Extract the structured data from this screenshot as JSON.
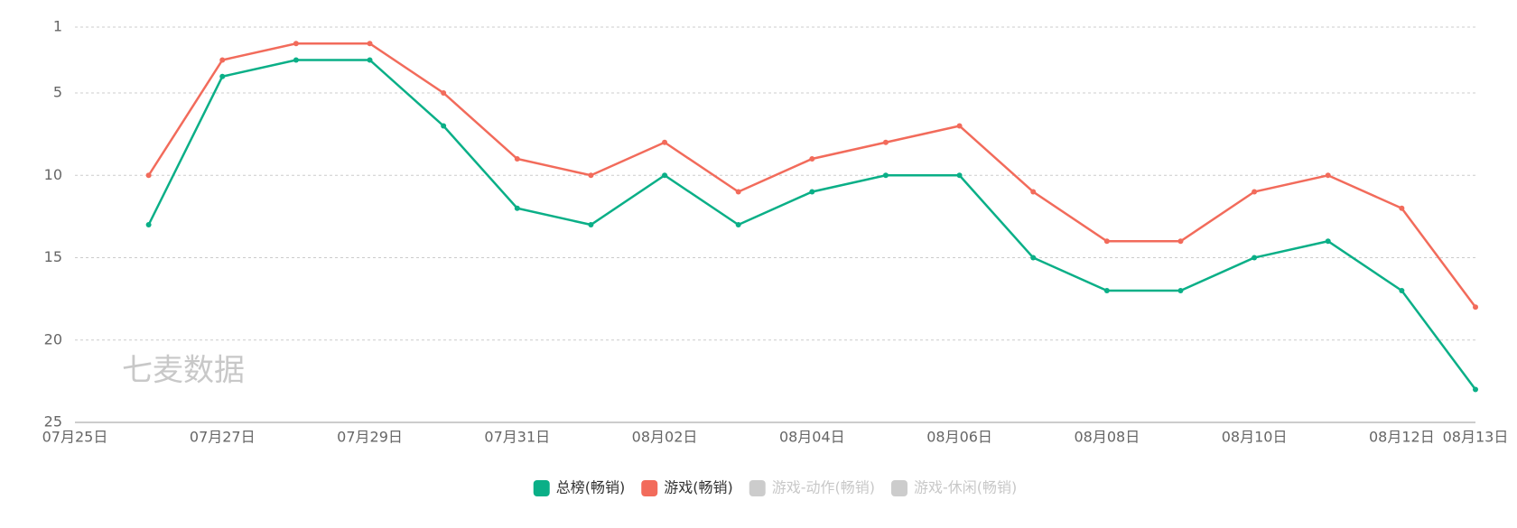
{
  "chart_data": {
    "type": "line",
    "watermark": "七麦数据",
    "categories": [
      "07月25日",
      null,
      "07月27日",
      null,
      "07月29日",
      null,
      "07月31日",
      null,
      "08月02日",
      null,
      "08月04日",
      null,
      "08月06日",
      null,
      "08月08日",
      null,
      "08月10日",
      null,
      "08月12日",
      "08月13日"
    ],
    "series": [
      {
        "name": "总榜(畅销)",
        "color": "#0aaf87",
        "values": [
          null,
          13,
          4,
          3,
          3,
          7,
          12,
          13,
          10,
          13,
          11,
          10,
          10,
          15,
          17,
          17,
          15,
          14,
          17,
          23
        ]
      },
      {
        "name": "游戏(畅销)",
        "color": "#f26b5b",
        "values": [
          null,
          10,
          3,
          2,
          2,
          5,
          9,
          10,
          8,
          11,
          9,
          8,
          7,
          11,
          14,
          14,
          11,
          10,
          12,
          18
        ]
      }
    ],
    "hidden_series": [
      {
        "name": "游戏-动作(畅销)",
        "color": "#cccccc"
      },
      {
        "name": "游戏-休闲(畅销)",
        "color": "#cccccc"
      }
    ],
    "ylim": [
      1,
      25
    ],
    "yticks": [
      1,
      5,
      10,
      15,
      20,
      25
    ],
    "inverted_y": true,
    "grid": true,
    "legend": "bottom"
  }
}
